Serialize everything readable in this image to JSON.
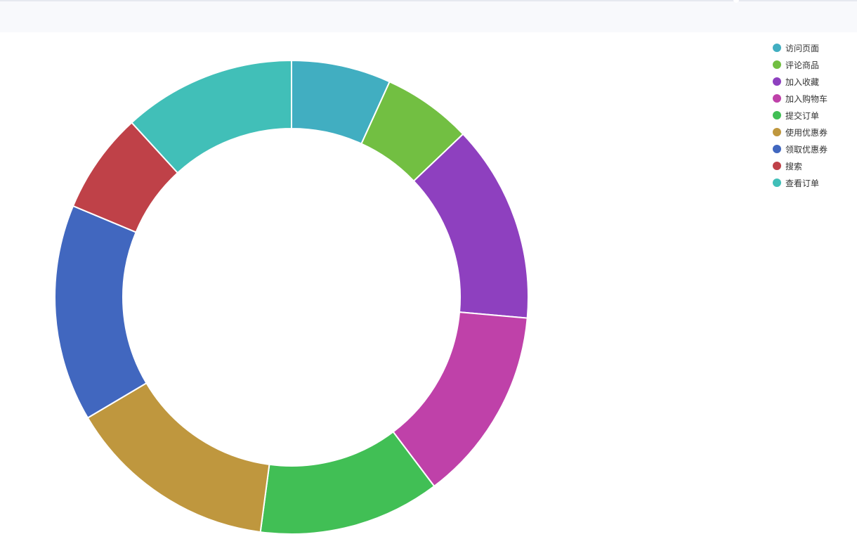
{
  "chart_data": {
    "type": "pie",
    "title": "",
    "legend_position": "top-right",
    "categories": [
      "访问页面",
      "评论商品",
      "加入收藏",
      "加入购物车",
      "提交订单",
      "使用优惠券",
      "领取优惠券",
      "搜索",
      "查看订单"
    ],
    "values": [
      6.8,
      6.1,
      13.5,
      13.3,
      12.4,
      14.4,
      14.8,
      6.9,
      11.8
    ],
    "colors": [
      "#41aec1",
      "#72bf42",
      "#8e40bf",
      "#bf41a9",
      "#41bf55",
      "#bf973e",
      "#4167bf",
      "#bf4148",
      "#41bfb8"
    ]
  }
}
